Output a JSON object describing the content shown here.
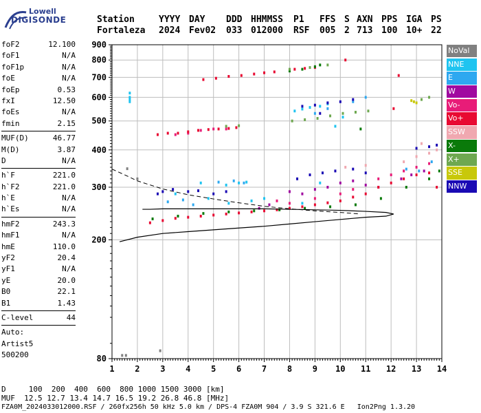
{
  "logo": {
    "line1": "Lowell",
    "line2": "DIGISONDE"
  },
  "header": {
    "labels": [
      "Station",
      "YYYY",
      "DAY",
      "DDD",
      "HHMMSS",
      "P1",
      "FFS",
      "S",
      "AXN",
      "PPS",
      "IGA",
      "PS"
    ],
    "values": [
      "Fortaleza",
      "2024",
      "Fev02",
      "033",
      "012000",
      "RSF",
      "005",
      "2",
      "713",
      "100",
      "10+",
      "22"
    ]
  },
  "params": [
    [
      {
        "k": "foF2",
        "v": "12.100"
      },
      {
        "k": "foF1",
        "v": "N/A"
      },
      {
        "k": "foF1p",
        "v": "N/A"
      },
      {
        "k": "foE",
        "v": "N/A"
      },
      {
        "k": "foEp",
        "v": "0.53"
      },
      {
        "k": "fxI",
        "v": "12.50"
      },
      {
        "k": "foEs",
        "v": "N/A"
      },
      {
        "k": "fmin",
        "v": "2.15"
      }
    ],
    [
      {
        "k": "MUF(D)",
        "v": "46.77"
      },
      {
        "k": "M(D)",
        "v": "3.87"
      },
      {
        "k": "D",
        "v": "N/A"
      }
    ],
    [
      {
        "k": "h`F",
        "v": "221.0"
      },
      {
        "k": "h`F2",
        "v": "221.0"
      },
      {
        "k": "h`E",
        "v": "N/A"
      },
      {
        "k": "h`Es",
        "v": "N/A"
      }
    ],
    [
      {
        "k": "hmF2",
        "v": "243.3"
      },
      {
        "k": "hmF1",
        "v": "N/A"
      },
      {
        "k": "hmE",
        "v": "110.0"
      },
      {
        "k": "yF2",
        "v": "20.4"
      },
      {
        "k": "yF1",
        "v": "N/A"
      },
      {
        "k": "yE",
        "v": "20.0"
      },
      {
        "k": "B0",
        "v": "22.1"
      },
      {
        "k": "B1",
        "v": "1.43"
      }
    ],
    [
      {
        "k": "C-level",
        "v": "44"
      }
    ]
  ],
  "auto": [
    "Auto:",
    "Artist5",
    "500200"
  ],
  "legend": [
    {
      "label": "NoVal",
      "color": "#808080"
    },
    {
      "label": "NNE",
      "color": "#1fc4f0"
    },
    {
      "label": "E",
      "color": "#2ea8f0"
    },
    {
      "label": "W",
      "color": "#a00aa0"
    },
    {
      "label": "Vo-",
      "color": "#e81c78"
    },
    {
      "label": "Vo+",
      "color": "#e80a32"
    },
    {
      "label": "SSW",
      "color": "#f0a8b0"
    },
    {
      "label": "X-",
      "color": "#0a7a0a"
    },
    {
      "label": "X+",
      "color": "#6ea850"
    },
    {
      "label": "SSE",
      "color": "#c8c80a"
    },
    {
      "label": "NNW",
      "color": "#1a0ab4"
    }
  ],
  "footer": {
    "line1": "D     100  200  400  600  800 1000 1500 3000 [km]",
    "line2": "MUF  12.5 12.7 13.4 14.7 16.5 19.2 26.8 46.8 [MHz]",
    "line3": "FZA0M_2024033012000.RSF / 260fx256h 50 kHz 5.0 km / DPS-4 FZA0M 904 / 3.9 S 321.6 E   Ion2Png 1.3.20"
  },
  "chart_data": {
    "type": "scatter",
    "xlim": [
      1,
      14
    ],
    "ylim": [
      80,
      900
    ],
    "y_scale": "log",
    "xticks": [
      1,
      2,
      3,
      4,
      5,
      6,
      7,
      8,
      9,
      10,
      11,
      12,
      13,
      14
    ],
    "yticks": [
      80,
      200,
      300,
      400,
      500,
      600,
      700,
      800,
      900
    ],
    "grid": true,
    "traces": [
      {
        "name": "NNE",
        "color": "#1fc4f0",
        "points": [
          [
            1.7,
            600
          ],
          [
            1.7,
            590
          ],
          [
            1.7,
            580
          ],
          [
            1.7,
            620
          ],
          [
            3.5,
            285
          ],
          [
            4.5,
            310
          ],
          [
            5.5,
            305
          ],
          [
            6.0,
            310
          ],
          [
            6.3,
            312
          ],
          [
            8.2,
            540
          ],
          [
            8.5,
            548
          ],
          [
            8.8,
            555
          ],
          [
            9.2,
            560
          ],
          [
            9.5,
            570
          ],
          [
            4.8,
            275
          ],
          [
            5.6,
            265
          ],
          [
            6.5,
            270
          ],
          [
            7.0,
            275
          ],
          [
            8.5,
            265
          ],
          [
            9.2,
            310
          ],
          [
            10.1,
            515
          ],
          [
            9.8,
            480
          ]
        ]
      },
      {
        "name": "E",
        "color": "#2ea8f0",
        "points": [
          [
            3.2,
            268
          ],
          [
            3.8,
            272
          ],
          [
            4.2,
            262
          ],
          [
            5.2,
            312
          ],
          [
            5.8,
            315
          ],
          [
            6.2,
            310
          ],
          [
            9.0,
            530
          ],
          [
            9.5,
            550
          ],
          [
            10.5,
            580
          ],
          [
            11.0,
            600
          ],
          [
            13.1,
            340
          ],
          [
            13.6,
            365
          ],
          [
            12.6,
            345
          ]
        ]
      },
      {
        "name": "W",
        "color": "#a00aa0",
        "points": [
          [
            8.0,
            290
          ],
          [
            8.5,
            285
          ],
          [
            9.0,
            295
          ],
          [
            9.5,
            300
          ],
          [
            10.0,
            310
          ],
          [
            10.5,
            315
          ],
          [
            11.0,
            305
          ],
          [
            11.5,
            300
          ],
          [
            6.8,
            255
          ],
          [
            7.2,
            262
          ],
          [
            12.4,
            320
          ],
          [
            12.8,
            330
          ],
          [
            13.3,
            340
          ]
        ]
      },
      {
        "name": "Vo-",
        "color": "#e81c78",
        "points": [
          [
            7.5,
            270
          ],
          [
            8.0,
            265
          ],
          [
            9.0,
            275
          ],
          [
            10.0,
            285
          ],
          [
            10.5,
            295
          ],
          [
            11.5,
            320
          ],
          [
            12.0,
            330
          ],
          [
            12.5,
            340
          ],
          [
            13.0,
            350
          ],
          [
            13.5,
            360
          ],
          [
            3.5,
            450
          ],
          [
            4.0,
            455
          ],
          [
            4.5,
            465
          ],
          [
            5.0,
            470
          ],
          [
            5.5,
            470
          ]
        ]
      },
      {
        "name": "Vo+",
        "color": "#e80a32",
        "points": [
          [
            2.8,
            450
          ],
          [
            3.2,
            455
          ],
          [
            3.6,
            455
          ],
          [
            4.0,
            460
          ],
          [
            4.4,
            465
          ],
          [
            4.8,
            468
          ],
          [
            5.2,
            470
          ],
          [
            5.6,
            472
          ],
          [
            5.9,
            475
          ],
          [
            2.5,
            228
          ],
          [
            3.0,
            232
          ],
          [
            3.5,
            236
          ],
          [
            4.0,
            238
          ],
          [
            4.5,
            240
          ],
          [
            5.0,
            242
          ],
          [
            5.5,
            244
          ],
          [
            6.0,
            246
          ],
          [
            6.5,
            248
          ],
          [
            7.0,
            250
          ],
          [
            7.5,
            252
          ],
          [
            8.0,
            255
          ],
          [
            8.5,
            258
          ],
          [
            9.0,
            262
          ],
          [
            9.5,
            266
          ],
          [
            10.0,
            270
          ],
          [
            10.5,
            278
          ],
          [
            11.0,
            285
          ],
          [
            11.5,
            300
          ],
          [
            12.0,
            310
          ],
          [
            12.5,
            320
          ],
          [
            13.0,
            330
          ],
          [
            13.5,
            335
          ],
          [
            13.8,
            300
          ],
          [
            12.3,
            710
          ],
          [
            12.1,
            550
          ],
          [
            4.6,
            688
          ],
          [
            5.1,
            695
          ],
          [
            5.6,
            705
          ],
          [
            6.1,
            710
          ],
          [
            6.6,
            718
          ],
          [
            7.0,
            725
          ],
          [
            7.4,
            730
          ],
          [
            8.2,
            745
          ],
          [
            8.6,
            750
          ],
          [
            9.0,
            755
          ],
          [
            10.2,
            800
          ]
        ]
      },
      {
        "name": "SSW",
        "color": "#f0a8b0",
        "points": [
          [
            10.2,
            350
          ],
          [
            11.0,
            355
          ],
          [
            12.5,
            365
          ],
          [
            13.0,
            380
          ],
          [
            13.5,
            390
          ],
          [
            13.8,
            400
          ],
          [
            13.2,
            420
          ]
        ]
      },
      {
        "name": "X-",
        "color": "#0a7a0a",
        "points": [
          [
            8.0,
            735
          ],
          [
            8.5,
            745
          ],
          [
            9.0,
            760
          ],
          [
            9.2,
            770
          ],
          [
            2.6,
            235
          ],
          [
            3.6,
            240
          ],
          [
            4.6,
            245
          ],
          [
            5.6,
            248
          ],
          [
            6.6,
            250
          ],
          [
            7.6,
            252
          ],
          [
            8.6,
            255
          ],
          [
            9.6,
            258
          ],
          [
            10.6,
            262
          ],
          [
            11.6,
            275
          ],
          [
            12.6,
            300
          ],
          [
            13.5,
            320
          ],
          [
            13.9,
            340
          ],
          [
            10.8,
            470
          ]
        ]
      },
      {
        "name": "X+",
        "color": "#6ea850",
        "points": [
          [
            8.0,
            745
          ],
          [
            8.8,
            755
          ],
          [
            9.5,
            770
          ],
          [
            8.1,
            500
          ],
          [
            8.6,
            505
          ],
          [
            9.1,
            510
          ],
          [
            9.6,
            520
          ],
          [
            10.1,
            530
          ],
          [
            10.6,
            535
          ],
          [
            11.1,
            540
          ],
          [
            5.5,
            480
          ],
          [
            6.0,
            482
          ],
          [
            13.5,
            600
          ],
          [
            13.2,
            590
          ]
        ]
      },
      {
        "name": "SSE",
        "color": "#c8c80a",
        "points": [
          [
            12.8,
            585
          ],
          [
            12.9,
            580
          ],
          [
            13.0,
            575
          ]
        ]
      },
      {
        "name": "NNW",
        "color": "#1a0ab4",
        "points": [
          [
            2.8,
            285
          ],
          [
            3.0,
            290
          ],
          [
            3.4,
            295
          ],
          [
            4.0,
            290
          ],
          [
            4.4,
            292
          ],
          [
            5.0,
            285
          ],
          [
            5.5,
            290
          ],
          [
            8.3,
            320
          ],
          [
            8.8,
            330
          ],
          [
            9.3,
            335
          ],
          [
            9.8,
            340
          ],
          [
            10.5,
            345
          ],
          [
            11.0,
            335
          ],
          [
            8.5,
            560
          ],
          [
            9.0,
            565
          ],
          [
            9.5,
            575
          ],
          [
            10.0,
            580
          ],
          [
            10.5,
            590
          ],
          [
            9.2,
            530
          ],
          [
            13.0,
            405
          ],
          [
            13.5,
            410
          ],
          [
            13.8,
            415
          ]
        ]
      },
      {
        "name": "NoVal",
        "color": "#808080",
        "points": [
          [
            1.6,
            346
          ],
          [
            2.0,
            320
          ],
          [
            1.4,
            82
          ],
          [
            1.55,
            82
          ],
          [
            2.9,
            85
          ]
        ]
      }
    ],
    "profile": {
      "color": "#000000",
      "points": [
        [
          1.3,
          197
        ],
        [
          2.0,
          204
        ],
        [
          3.0,
          210
        ],
        [
          4.0,
          213
        ],
        [
          5.0,
          216
        ],
        [
          6.0,
          219
        ],
        [
          7.0,
          222
        ],
        [
          8.0,
          226
        ],
        [
          9.0,
          230
        ],
        [
          10.0,
          234
        ],
        [
          11.0,
          238
        ],
        [
          11.8,
          240
        ],
        [
          12.1,
          244
        ],
        [
          11.8,
          247
        ],
        [
          11.0,
          249
        ],
        [
          10.0,
          251
        ],
        [
          9.0,
          252
        ],
        [
          8.0,
          253
        ],
        [
          7.0,
          254
        ],
        [
          6.0,
          254
        ],
        [
          5.0,
          254
        ],
        [
          4.0,
          254
        ],
        [
          3.0,
          254
        ],
        [
          2.5,
          253
        ],
        [
          2.2,
          253
        ]
      ]
    },
    "dashed_profile": {
      "color": "#000000",
      "points": [
        [
          1.0,
          345
        ],
        [
          1.5,
          330
        ],
        [
          2.0,
          315
        ],
        [
          3.0,
          296
        ],
        [
          4.0,
          283
        ],
        [
          5.0,
          274
        ],
        [
          6.0,
          266
        ],
        [
          7.0,
          259
        ],
        [
          8.0,
          254
        ],
        [
          9.0,
          250
        ],
        [
          10.0,
          247
        ],
        [
          10.8,
          244
        ]
      ]
    }
  }
}
